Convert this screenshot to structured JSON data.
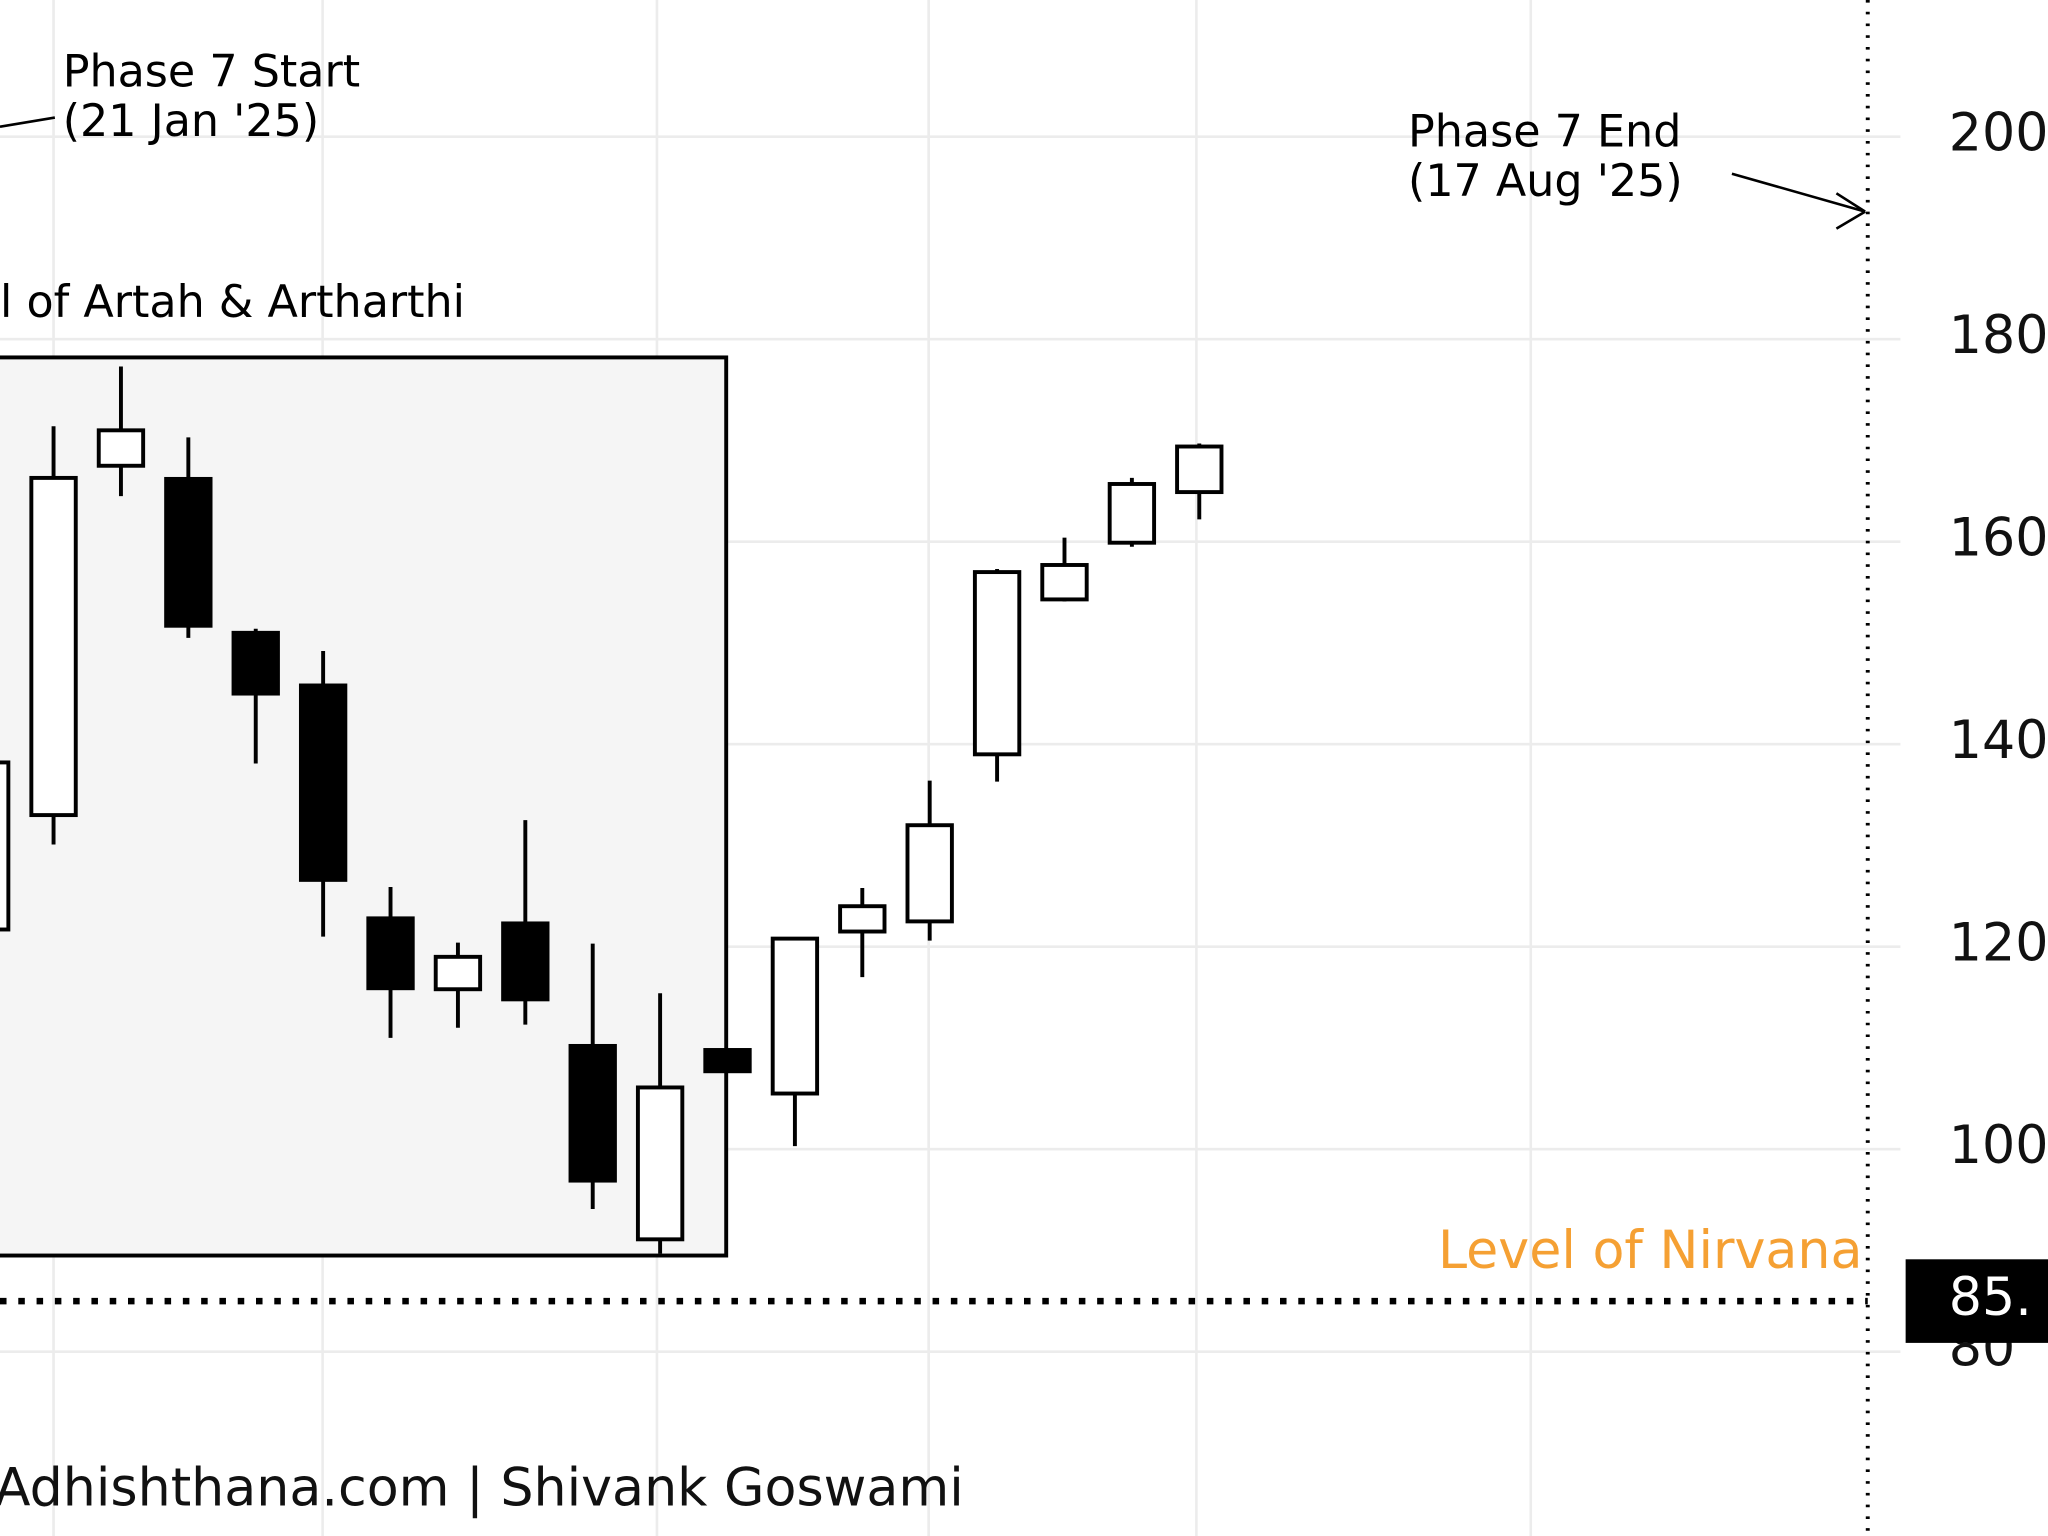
{
  "chart_data": {
    "type": "candlestick",
    "categories": [
      null,
      null,
      null,
      null,
      null,
      null,
      null,
      null,
      null,
      null,
      null,
      null,
      null,
      null,
      null,
      null,
      null,
      null,
      null
    ],
    "open": [
      121.7,
      133.0,
      167.5,
      166.2,
      151.0,
      145.8,
      122.8,
      115.8,
      122.3,
      110.2,
      91.1,
      109.8,
      105.5,
      121.5,
      122.5,
      139.0,
      154.3,
      159.9,
      164.9
    ],
    "high": [
      138.2,
      171.4,
      177.3,
      170.3,
      151.4,
      149.2,
      125.9,
      120.4,
      132.5,
      120.3,
      115.4,
      109.8,
      120.8,
      125.8,
      136.4,
      157.3,
      160.4,
      166.3,
      169.7
    ],
    "low": [
      121.7,
      130.1,
      164.5,
      150.5,
      138.1,
      121.0,
      111.0,
      112.0,
      112.3,
      94.1,
      89.7,
      107.7,
      100.3,
      117.0,
      120.6,
      136.3,
      154.1,
      159.5,
      162.2
    ],
    "close": [
      138.2,
      166.3,
      171.0,
      151.7,
      145.0,
      126.6,
      115.9,
      119.0,
      114.8,
      96.9,
      106.1,
      107.7,
      120.8,
      124.0,
      132.0,
      157.0,
      157.7,
      165.7,
      169.4
    ],
    "up_color": "#ffffff",
    "down_color": "#000000",
    "ylim": [
      61.8,
      213.5
    ],
    "yticks": [
      80,
      100,
      120,
      140,
      160,
      180,
      200
    ],
    "grid": true,
    "zone_ylim": [
      89.5,
      178.2
    ],
    "zone_label": "l of Artah & Artharthi",
    "level": {
      "value": 85,
      "label": "85."
    },
    "level_label": "Level of Nirvana",
    "level_color": "#f5a033",
    "phase_start": [
      "Phase 7 Start",
      "(21 Jan '25)"
    ],
    "phase_end": [
      "Phase 7 End",
      "(17 Aug '25)"
    ],
    "watermark": "Adhishthana.com | Shivank Goswami"
  }
}
